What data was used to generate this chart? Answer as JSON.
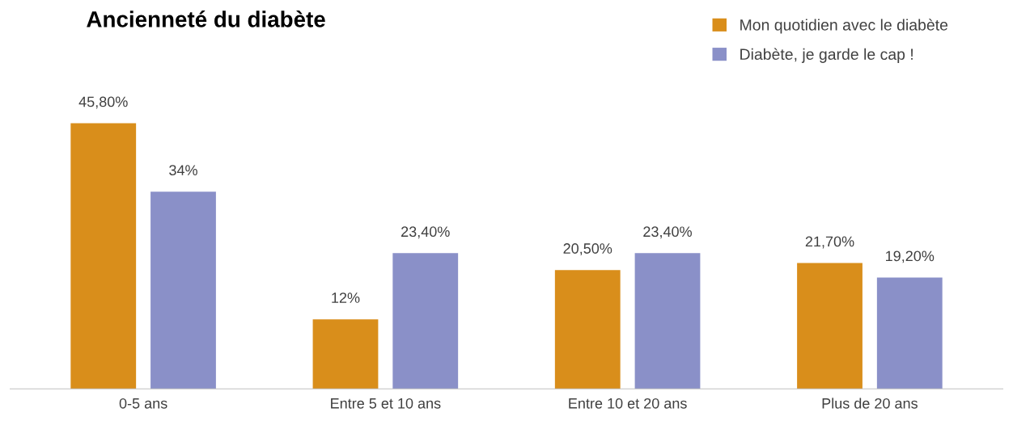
{
  "chart_data": {
    "type": "bar",
    "title": "Ancienneté du diabète",
    "categories": [
      "0-5 ans",
      "Entre 5 et 10 ans",
      "Entre 10 et 20 ans",
      "Plus de 20 ans"
    ],
    "series": [
      {
        "name": "Mon quotidien avec le diabète",
        "color": "#d98e1b",
        "values": [
          45.8,
          12,
          20.5,
          21.7
        ],
        "value_labels": [
          "45,80%",
          "12%",
          "20,50%",
          "21,70%"
        ]
      },
      {
        "name": "Diabète, je garde le cap !",
        "color": "#8a90c8",
        "values": [
          34,
          23.4,
          23.4,
          19.2
        ],
        "value_labels": [
          "34%",
          "23,40%",
          "23,40%",
          "19,20%"
        ]
      }
    ],
    "legend": "top right",
    "grid": false
  }
}
